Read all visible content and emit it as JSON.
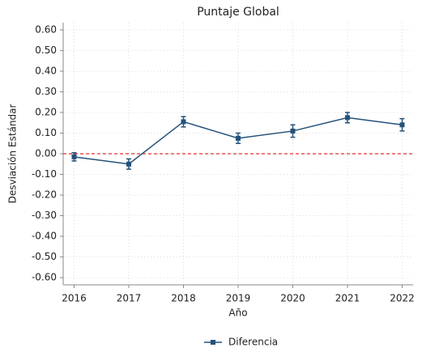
{
  "chart_data": {
    "type": "line",
    "title": "Puntaje Global",
    "x_label": "Año",
    "y_label": "Desviación Estándar",
    "x": [
      2016,
      2017,
      2018,
      2019,
      2020,
      2021,
      2022
    ],
    "series": [
      {
        "name": "Diferencia",
        "color": "#24527a",
        "values": [
          -0.015,
          -0.05,
          0.155,
          0.075,
          0.11,
          0.175,
          0.14
        ],
        "errors": [
          0.02,
          0.025,
          0.025,
          0.025,
          0.03,
          0.025,
          0.03
        ]
      }
    ],
    "xlim": [
      2015.8,
      2022.2
    ],
    "xticks": [
      2016,
      2017,
      2018,
      2019,
      2020,
      2021,
      2022
    ],
    "ylim": [
      -0.635,
      0.635
    ],
    "yticks": [
      {
        "value": -0.6,
        "label": "-0.60"
      },
      {
        "value": -0.5,
        "label": "-0.50"
      },
      {
        "value": -0.4,
        "label": "-0.40"
      },
      {
        "value": -0.3,
        "label": "-0.30"
      },
      {
        "value": -0.2,
        "label": "-0.20"
      },
      {
        "value": -0.1,
        "label": "-0.10"
      },
      {
        "value": 0,
        "label": "0.00"
      },
      {
        "value": 0.1,
        "label": "0.10"
      },
      {
        "value": 0.2,
        "label": "0.20"
      },
      {
        "value": 0.3,
        "label": "0.30"
      },
      {
        "value": 0.4,
        "label": "0.40"
      },
      {
        "value": 0.5,
        "label": "0.50"
      },
      {
        "value": 0.6,
        "label": "0.60"
      }
    ],
    "grid": true,
    "legend": "bottom",
    "reference_line": {
      "y": 0,
      "color": "#e03030"
    }
  }
}
